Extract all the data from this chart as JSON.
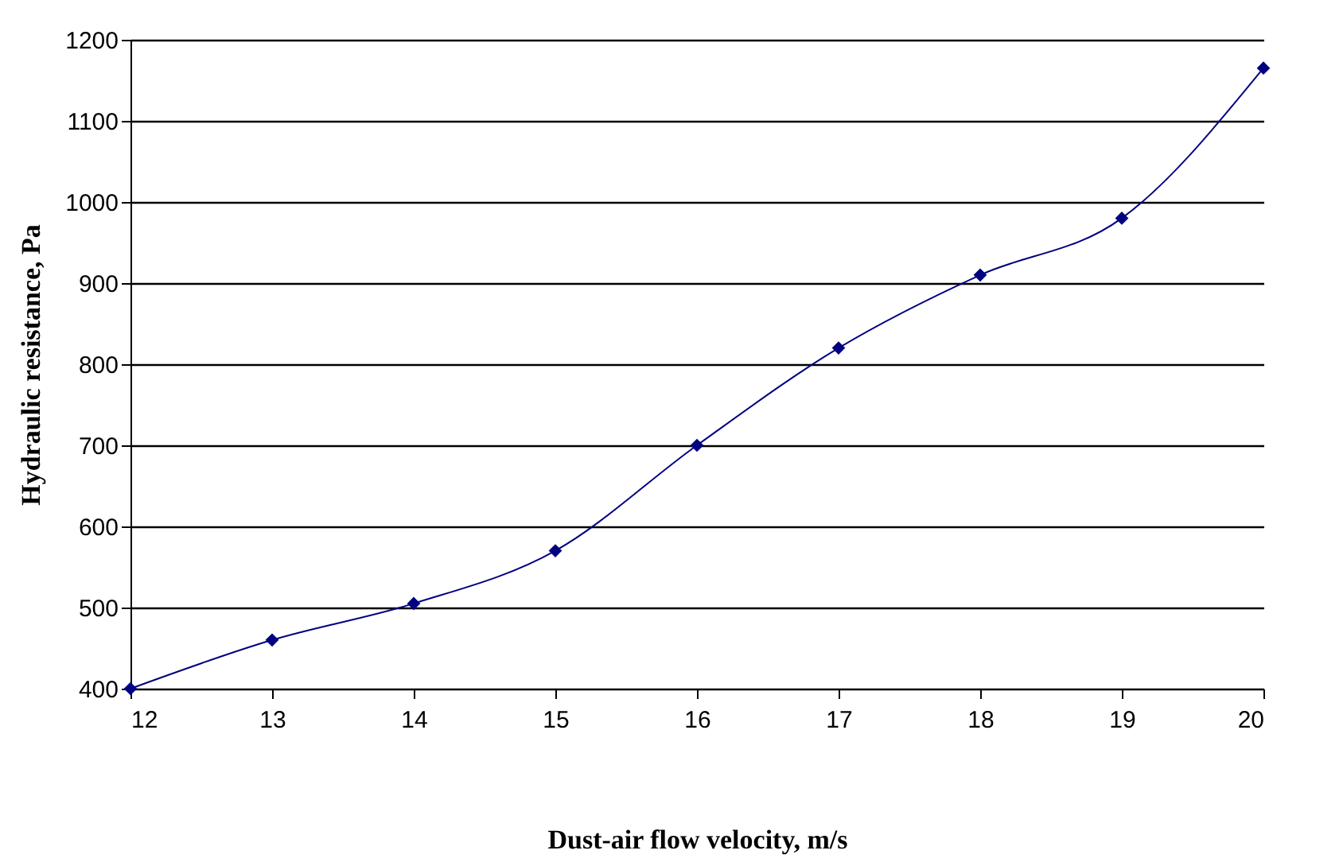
{
  "chart_data": {
    "type": "line",
    "xlabel": "Dust-air flow velocity, m/s",
    "ylabel": "Hydraulic resistance, Pa",
    "x": [
      12,
      13,
      14,
      15,
      16,
      17,
      18,
      19,
      20
    ],
    "series": [
      {
        "color": "#000080",
        "values": [
          400,
          460,
          505,
          570,
          700,
          820,
          910,
          980,
          1165
        ]
      }
    ],
    "xlim": [
      12,
      20
    ],
    "xticks": [
      12,
      13,
      14,
      15,
      16,
      17,
      18,
      19,
      20
    ],
    "ylim": [
      400,
      1200
    ],
    "yticks": [
      400,
      500,
      600,
      700,
      800,
      900,
      1000,
      1100,
      1200
    ],
    "grid": "y",
    "marker": "diamond",
    "line_style": "solid",
    "legend": false
  }
}
